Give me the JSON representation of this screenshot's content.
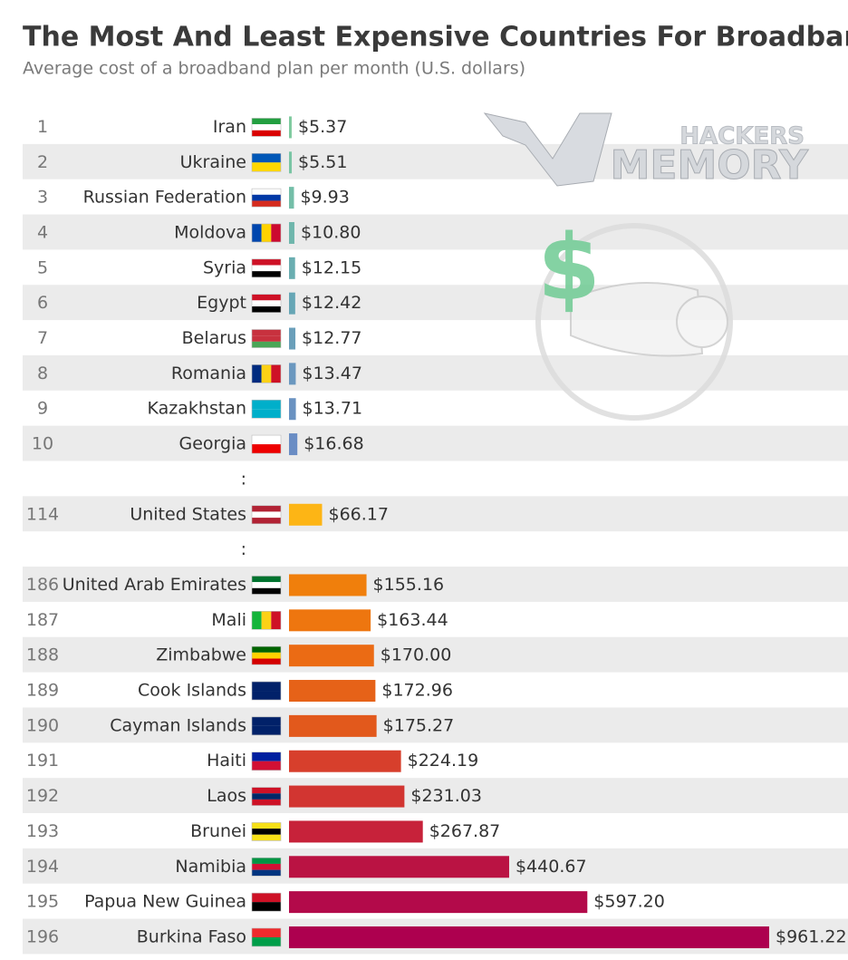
{
  "chart_data": {
    "type": "bar",
    "orientation": "horizontal",
    "title": "The Most And Least Expensive Countries For Broadband",
    "subtitle": "Average cost of a broadband plan per month (U.S. dollars)",
    "watermark": [
      "HACKERS",
      "MEMORY"
    ],
    "ranks": [
      1,
      2,
      3,
      4,
      5,
      6,
      7,
      8,
      9,
      10,
      null,
      114,
      null,
      186,
      187,
      188,
      189,
      190,
      191,
      192,
      193,
      194,
      195,
      196
    ],
    "categories": [
      "Iran",
      "Ukraine",
      "Russian Federation",
      "Moldova",
      "Syria",
      "Egypt",
      "Belarus",
      "Romania",
      "Kazakhstan",
      "Georgia",
      ":",
      "United States",
      ":",
      "United Arab Emirates",
      "Mali",
      "Zimbabwe",
      "Cook Islands",
      "Cayman Islands",
      "Haiti",
      "Laos",
      "Brunei",
      "Namibia",
      "Papua New Guinea",
      "Burkina Faso"
    ],
    "values": [
      5.37,
      5.51,
      9.93,
      10.8,
      12.15,
      12.42,
      12.77,
      13.47,
      13.71,
      16.68,
      null,
      66.17,
      null,
      155.16,
      163.44,
      170.0,
      172.96,
      175.27,
      224.19,
      231.03,
      267.87,
      440.67,
      597.2,
      961.22
    ],
    "value_labels": [
      "$5.37",
      "$5.51",
      "$9.93",
      "$10.80",
      "$12.15",
      "$12.42",
      "$12.77",
      "$13.47",
      "$13.71",
      "$16.68",
      null,
      "$66.17",
      null,
      "$155.16",
      "$163.44",
      "$170.00",
      "$172.96",
      "$175.27",
      "$224.19",
      "$231.03",
      "$267.87",
      "$440.67",
      "$597.20",
      "$961.22"
    ],
    "colors": [
      "#7fcb9f",
      "#7ac5a4",
      "#74bea8",
      "#6fb6ac",
      "#6aaeb1",
      "#66a6b5",
      "#6a9fba",
      "#6b98bf",
      "#6a92c1",
      "#6a8dc4",
      null,
      "#fdb515",
      null,
      "#f07f0c",
      "#ee760f",
      "#eb6b14",
      "#e66218",
      "#e2591c",
      "#d73f2c",
      "#d23531",
      "#c7223a",
      "#ba1343",
      "#b30a4a",
      "#ad004f"
    ]
  }
}
